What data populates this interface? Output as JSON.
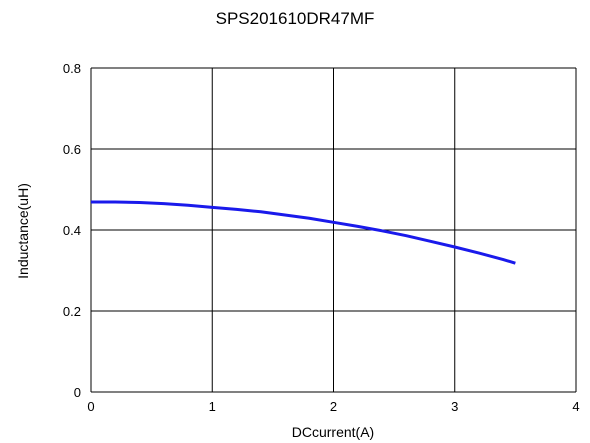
{
  "chart_data": {
    "type": "line",
    "title": "SPS201610DR47MF",
    "xlabel": "DCcurrent(A)",
    "ylabel": "Inductance(uH)",
    "xlim": [
      0,
      4
    ],
    "ylim": [
      0,
      0.8
    ],
    "x_ticks": [
      "0",
      "1",
      "2",
      "3",
      "4"
    ],
    "y_ticks": [
      "0",
      "0.2",
      "0.4",
      "0.6",
      "0.8"
    ],
    "grid": true,
    "legend": "none",
    "colors": {
      "line": "#1a1aeb",
      "grid": "#000000",
      "background": "#ffffff"
    },
    "series": [
      {
        "x": [
          0,
          0.2,
          0.4,
          0.6,
          0.8,
          1.0,
          1.2,
          1.4,
          1.6,
          1.8,
          2.0,
          2.2,
          2.4,
          2.6,
          2.8,
          3.0,
          3.2,
          3.4,
          3.5
        ],
        "y": [
          0.469,
          0.469,
          0.468,
          0.465,
          0.461,
          0.456,
          0.451,
          0.445,
          0.437,
          0.429,
          0.419,
          0.409,
          0.398,
          0.386,
          0.372,
          0.358,
          0.343,
          0.327,
          0.318
        ]
      }
    ]
  }
}
